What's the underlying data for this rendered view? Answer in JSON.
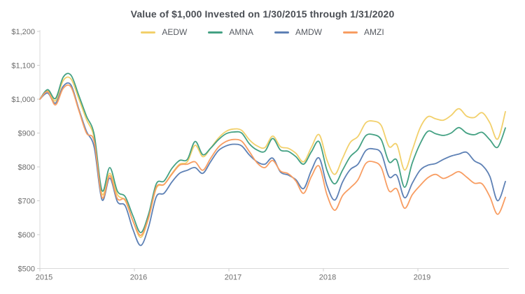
{
  "title": "Value of $1,000 Invested on 1/30/2015 through 1/31/2020",
  "colors": {
    "title_text": "#4b4f55",
    "axis_text": "#6e6e6e",
    "axis_line": "#d9d9d9",
    "tick_mark": "#cccccc",
    "background": "#ffffff"
  },
  "chart_data": {
    "type": "line",
    "title": "Value of $1,000 Invested on 1/30/2015 through 1/31/2020",
    "x_start": "1/30/2015",
    "x_end": "1/31/2020",
    "frequency": "monthly",
    "xlabel": "",
    "ylabel": "",
    "ylim": [
      500,
      1200
    ],
    "grid": false,
    "legend_position": "top",
    "x_tick_labels": [
      "2015",
      "2016",
      "2017",
      "2018",
      "2019"
    ],
    "y_tick_labels": [
      "$500",
      "$600",
      "$700",
      "$800",
      "$900",
      "$1,000",
      "$1,100",
      "$1,200"
    ],
    "y_tick_values": [
      500,
      600,
      700,
      800,
      900,
      1000,
      1100,
      1200
    ],
    "series": [
      {
        "name": "AEDW",
        "color": "#f2d06b",
        "values": [
          1000,
          1025,
          995,
          1055,
          1060,
          1002,
          940,
          885,
          720,
          781,
          718,
          700,
          640,
          592,
          648,
          737,
          748,
          780,
          808,
          815,
          864,
          830,
          855,
          885,
          905,
          912,
          908,
          880,
          862,
          857,
          891,
          860,
          855,
          840,
          815,
          858,
          895,
          820,
          778,
          825,
          872,
          890,
          930,
          935,
          922,
          860,
          866,
          791,
          850,
          915,
          948,
          942,
          938,
          952,
          972,
          950,
          946,
          960,
          930,
          882,
          963
        ]
      },
      {
        "name": "AMNA",
        "color": "#44a183",
        "values": [
          1000,
          1028,
          1002,
          1065,
          1071,
          1012,
          950,
          895,
          730,
          798,
          728,
          712,
          655,
          606,
          660,
          750,
          758,
          795,
          819,
          822,
          875,
          836,
          855,
          880,
          898,
          903,
          900,
          868,
          850,
          846,
          884,
          850,
          846,
          830,
          808,
          845,
          874,
          790,
          750,
          790,
          830,
          852,
          892,
          895,
          880,
          815,
          820,
          740,
          812,
          868,
          905,
          898,
          893,
          900,
          916,
          900,
          895,
          902,
          880,
          858,
          915
        ]
      },
      {
        "name": "AMDW",
        "color": "#5e81b5",
        "values": [
          1000,
          1018,
          988,
          1038,
          1042,
          972,
          905,
          858,
          703,
          767,
          697,
          685,
          615,
          568,
          622,
          712,
          722,
          755,
          781,
          790,
          798,
          781,
          815,
          848,
          862,
          867,
          862,
          835,
          815,
          808,
          826,
          785,
          776,
          762,
          736,
          790,
          826,
          745,
          702,
          755,
          792,
          808,
          848,
          853,
          840,
          771,
          775,
          709,
          752,
          790,
          805,
          810,
          822,
          832,
          838,
          843,
          818,
          805,
          772,
          700,
          757
        ]
      },
      {
        "name": "AMZI",
        "color": "#f89d62",
        "values": [
          1000,
          1022,
          983,
          1032,
          1036,
          968,
          900,
          875,
          710,
          774,
          706,
          703,
          640,
          598,
          650,
          740,
          748,
          778,
          805,
          808,
          815,
          790,
          825,
          858,
          875,
          881,
          876,
          845,
          812,
          798,
          819,
          788,
          780,
          758,
          722,
          772,
          802,
          718,
          672,
          715,
          738,
          762,
          810,
          815,
          798,
          729,
          735,
          678,
          718,
          745,
          768,
          778,
          766,
          775,
          786,
          770,
          752,
          750,
          712,
          660,
          710
        ]
      }
    ]
  }
}
